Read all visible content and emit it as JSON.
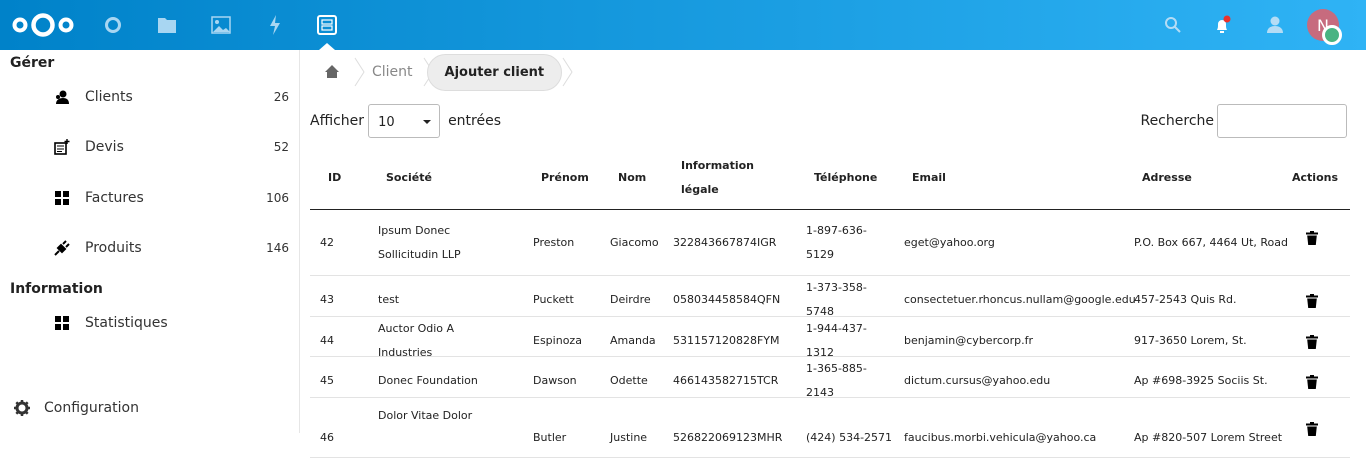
{
  "header": {
    "icons": [
      "nextcloud-logo",
      "dashboard-icon",
      "files-icon",
      "photos-icon",
      "activity-icon",
      "app-icon"
    ],
    "right_icons": [
      "search-icon",
      "notifications-icon",
      "contacts-icon"
    ],
    "avatar_initial": "N",
    "status_color": "#49b382",
    "avatar_color": "#c76b7e",
    "notification_dot": "#e9322d"
  },
  "sidebar": {
    "sections": [
      {
        "title": "Gérer"
      },
      {
        "title": "Information"
      }
    ],
    "items": [
      {
        "label": "Clients",
        "count": "26",
        "icon": "clients-icon"
      },
      {
        "label": "Devis",
        "count": "52",
        "icon": "quote-icon"
      },
      {
        "label": "Factures",
        "count": "106",
        "icon": "grid-icon"
      },
      {
        "label": "Produits",
        "count": "146",
        "icon": "plug-icon"
      },
      {
        "label": "Statistiques",
        "icon": "grid-icon"
      }
    ],
    "config": "Configuration"
  },
  "breadcrumb": {
    "items": [
      "Client",
      "Ajouter client"
    ]
  },
  "controls": {
    "show_label": "Afficher",
    "page_size": "10",
    "entries_label": "entrées",
    "search_label": "Recherche",
    "search_value": ""
  },
  "table": {
    "headers": [
      "ID",
      "Société",
      "Prénom",
      "Nom",
      "Information légale",
      "Téléphone",
      "Email",
      "Adresse",
      "Actions"
    ],
    "rows": [
      [
        "42",
        "Ipsum Donec Sollicitudin LLP",
        "Preston",
        "Giacomo",
        "322843667874IGR",
        "1-897-636-5129",
        "eget@yahoo.org",
        "P.O. Box 667, 4464 Ut, Road"
      ],
      [
        "43",
        "test",
        "Puckett",
        "Deirdre",
        "058034458584QFN",
        "1-373-358-5748",
        "consectetuer.rhoncus.nullam@google.edu",
        "457-2543 Quis Rd."
      ],
      [
        "44",
        "Auctor Odio A Industries",
        "Espinoza",
        "Amanda",
        "531157120828FYM",
        "1-944-437-1312",
        "benjamin@cybercorp.fr",
        "917-3650 Lorem, St."
      ],
      [
        "45",
        "Donec Foundation",
        "Dawson",
        "Odette",
        "466143582715TCR",
        "1-365-885-2143",
        "dictum.cursus@yahoo.edu",
        "Ap #698-3925 Sociis St."
      ],
      [
        "46",
        "Dolor Vitae Dolor",
        "Butler",
        "Justine",
        "526822069123MHR",
        "(424) 534-2571",
        "faucibus.morbi.vehicula@yahoo.ca",
        "Ap #820-507 Lorem Street"
      ]
    ]
  }
}
